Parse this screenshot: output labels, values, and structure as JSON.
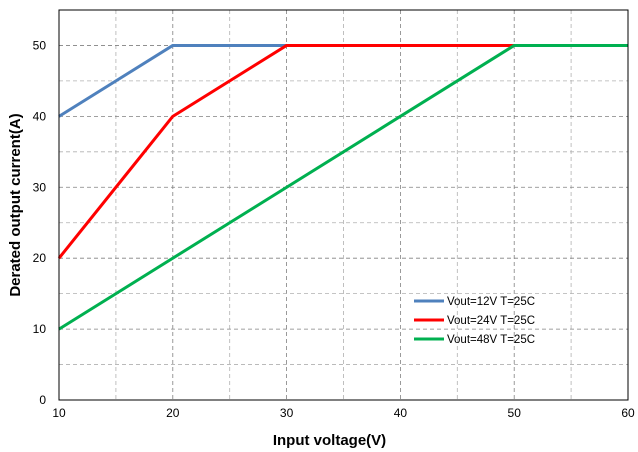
{
  "chart_data": {
    "type": "line",
    "xlabel": "Input voltage(V)",
    "ylabel": "Derated output current(A)",
    "xlim": [
      10,
      60
    ],
    "ylim": [
      0,
      55
    ],
    "xticks": [
      10,
      20,
      30,
      40,
      50,
      60
    ],
    "yticks": [
      0,
      10,
      20,
      30,
      40,
      50
    ],
    "grid": true,
    "legend_position": "lower-right",
    "series": [
      {
        "name": "Vout=12V T=25C",
        "color": "#4f81bd",
        "x": [
          10,
          20,
          60
        ],
        "y": [
          40,
          50,
          50
        ]
      },
      {
        "name": "Vout=24V T=25C",
        "color": "#ff0000",
        "x": [
          10,
          20,
          30,
          60
        ],
        "y": [
          20,
          40,
          50,
          50
        ]
      },
      {
        "name": "Vout=48V T=25C",
        "color": "#00b050",
        "x": [
          10,
          50,
          60
        ],
        "y": [
          10,
          50,
          50
        ]
      }
    ]
  }
}
